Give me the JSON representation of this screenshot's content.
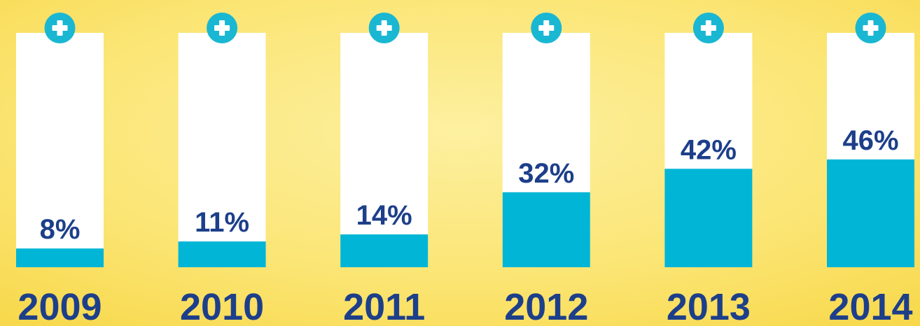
{
  "chart_data": {
    "type": "bar",
    "categories": [
      "2009",
      "2010",
      "2011",
      "2012",
      "2013",
      "2014"
    ],
    "values": [
      8,
      11,
      14,
      32,
      42,
      46
    ],
    "value_labels": [
      "8%",
      "11%",
      "14%",
      "32%",
      "42%",
      "46%"
    ],
    "color": "#00b5d6",
    "ylim": [
      0,
      100
    ]
  }
}
